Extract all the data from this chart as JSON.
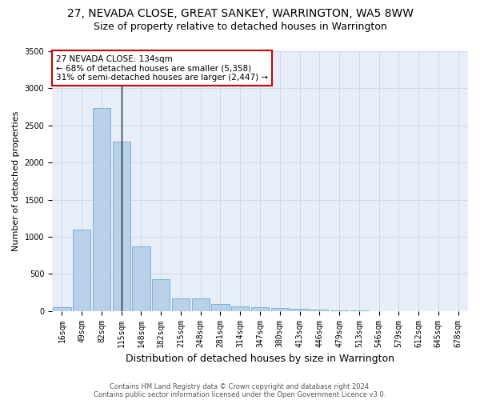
{
  "title": "27, NEVADA CLOSE, GREAT SANKEY, WARRINGTON, WA5 8WW",
  "subtitle": "Size of property relative to detached houses in Warrington",
  "xlabel": "Distribution of detached houses by size in Warrington",
  "ylabel": "Number of detached properties",
  "categories": [
    "16sqm",
    "49sqm",
    "82sqm",
    "115sqm",
    "148sqm",
    "182sqm",
    "215sqm",
    "248sqm",
    "281sqm",
    "314sqm",
    "347sqm",
    "380sqm",
    "413sqm",
    "446sqm",
    "479sqm",
    "513sqm",
    "546sqm",
    "579sqm",
    "612sqm",
    "645sqm",
    "678sqm"
  ],
  "values": [
    50,
    1100,
    2730,
    2280,
    870,
    430,
    170,
    165,
    90,
    65,
    50,
    40,
    28,
    20,
    5,
    3,
    0,
    0,
    0,
    0,
    0
  ],
  "bar_color": "#b8d0e8",
  "bar_edgecolor": "#6aaad4",
  "marker_bar_index": 3,
  "marker_line_color": "#222222",
  "annotation_text": "27 NEVADA CLOSE: 134sqm\n← 68% of detached houses are smaller (5,358)\n31% of semi-detached houses are larger (2,447) →",
  "box_edgecolor": "#cc0000",
  "box_facecolor": "#ffffff",
  "ylim": [
    0,
    3500
  ],
  "yticks": [
    0,
    500,
    1000,
    1500,
    2000,
    2500,
    3000,
    3500
  ],
  "grid_color": "#d0d8e8",
  "bg_color": "#e8eef8",
  "footnote1": "Contains HM Land Registry data © Crown copyright and database right 2024.",
  "footnote2": "Contains public sector information licensed under the Open Government Licence v3.0.",
  "title_fontsize": 10,
  "subtitle_fontsize": 9,
  "xlabel_fontsize": 9,
  "ylabel_fontsize": 8,
  "annotation_fontsize": 7.5,
  "tick_fontsize": 7
}
